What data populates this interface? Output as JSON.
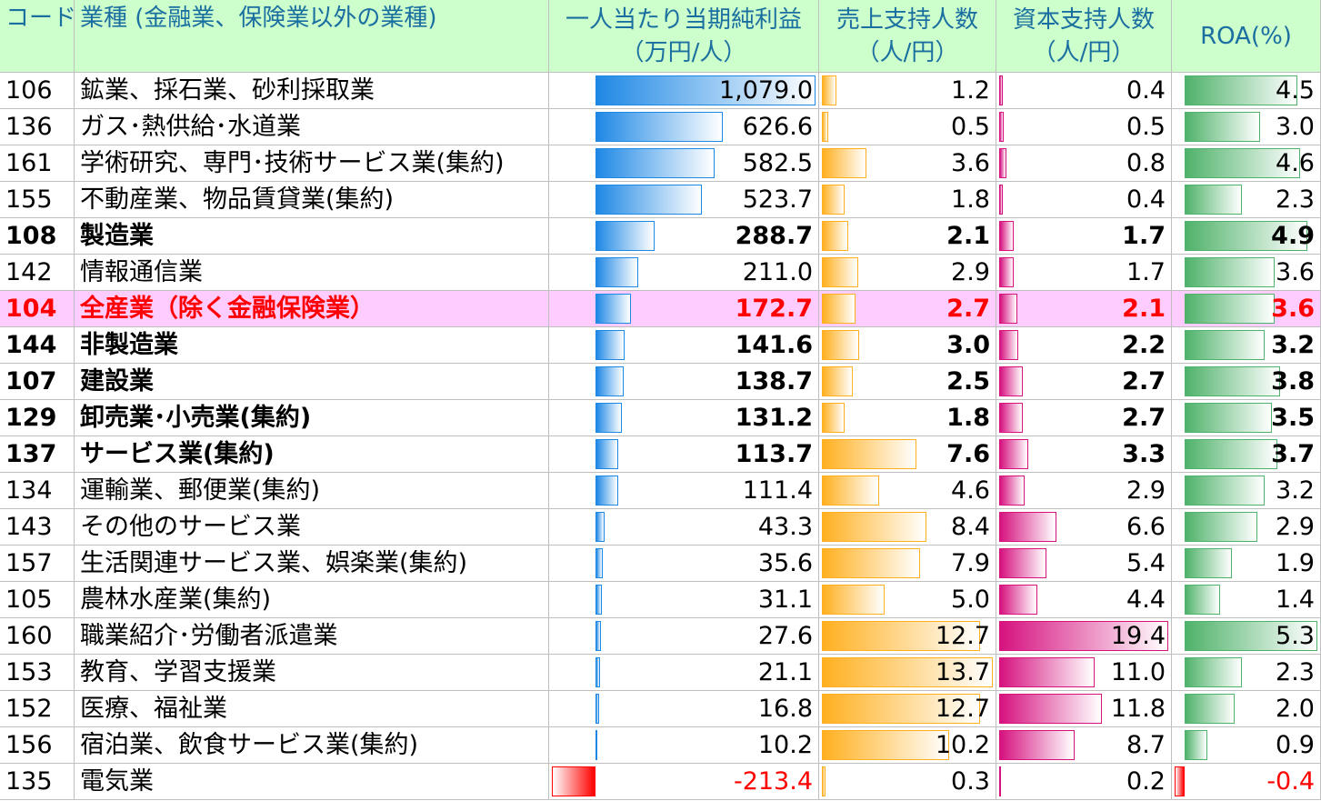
{
  "table": {
    "header": [
      [
        "コード"
      ],
      [
        "業種 (金融業、保険業以外の業種)"
      ],
      [
        "一人当たり当期純利益",
        "（万円/人）"
      ],
      [
        "売上支持人数",
        "（人/円）"
      ],
      [
        "資本支持人数",
        "（人/円）"
      ],
      [
        "ROA(%)"
      ]
    ],
    "rows": [
      [
        "106",
        "鉱業、採石業、砂利採取業",
        "1,079.0",
        "1.2",
        "0.4",
        "4.5"
      ],
      [
        "136",
        "ガス･熱供給･水道業",
        "626.6",
        "0.5",
        "0.5",
        "3.0"
      ],
      [
        "161",
        "学術研究、専門･技術サービス業(集約)",
        "582.5",
        "3.6",
        "0.8",
        "4.6"
      ],
      [
        "155",
        "不動産業、物品賃貸業(集約)",
        "523.7",
        "1.8",
        "0.4",
        "2.3"
      ],
      [
        "108",
        "製造業",
        "288.7",
        "2.1",
        "1.7",
        "4.9"
      ],
      [
        "142",
        "情報通信業",
        "211.0",
        "2.9",
        "1.7",
        "3.6"
      ],
      [
        "104",
        "全産業（除く金融保険業）",
        "172.7",
        "2.7",
        "2.1",
        "3.6"
      ],
      [
        "144",
        "非製造業",
        "141.6",
        "3.0",
        "2.2",
        "3.2"
      ],
      [
        "107",
        "建設業",
        "138.7",
        "2.5",
        "2.7",
        "3.8"
      ],
      [
        "129",
        "卸売業･小売業(集約)",
        "131.2",
        "1.8",
        "2.7",
        "3.5"
      ],
      [
        "137",
        "サービス業(集約)",
        "113.7",
        "7.6",
        "3.3",
        "3.7"
      ],
      [
        "134",
        "運輸業、郵便業(集約)",
        "111.4",
        "4.6",
        "2.9",
        "3.2"
      ],
      [
        "143",
        "その他のサービス業",
        "43.3",
        "8.4",
        "6.6",
        "2.9"
      ],
      [
        "157",
        "生活関連サービス業、娯楽業(集約)",
        "35.6",
        "7.9",
        "5.4",
        "1.9"
      ],
      [
        "105",
        "農林水産業(集約)",
        "31.1",
        "5.0",
        "4.4",
        "1.4"
      ],
      [
        "160",
        "職業紹介･労働者派遣業",
        "27.6",
        "12.7",
        "19.4",
        "5.3"
      ],
      [
        "153",
        "教育、学習支援業",
        "21.1",
        "13.7",
        "11.0",
        "2.3"
      ],
      [
        "152",
        "医療、福祉業",
        "16.8",
        "12.7",
        "11.8",
        "2.0"
      ],
      [
        "156",
        "宿泊業、飲食サービス業(集約)",
        "10.2",
        "10.2",
        "8.7",
        "0.9"
      ],
      [
        "135",
        "電気業",
        "-213.4",
        "0.3",
        "0.2",
        "-0.4"
      ]
    ]
  }
}
